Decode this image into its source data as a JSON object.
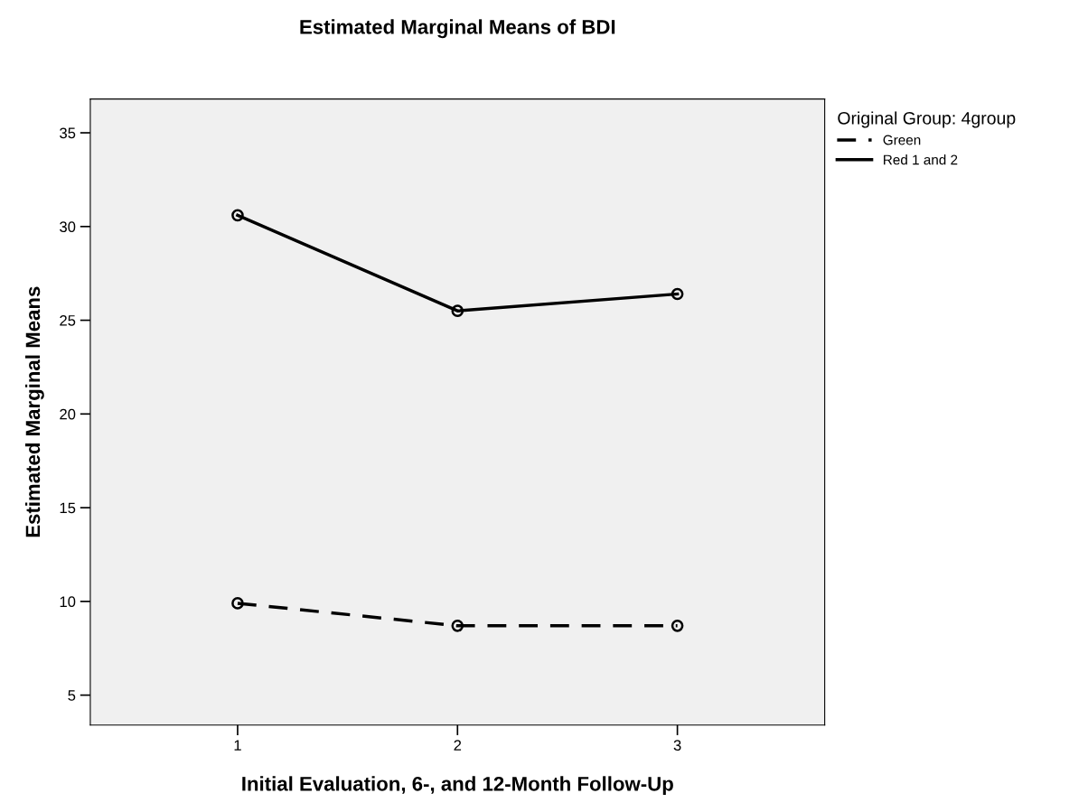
{
  "chart_data": {
    "type": "line",
    "title": "Estimated Marginal Means of BDI",
    "xlabel": "Initial Evaluation, 6-, and 12-Month Follow-Up",
    "ylabel": "Estimated Marginal Means",
    "legend_title": "Original Group: 4group",
    "legend": "top right",
    "x": [
      1,
      2,
      3
    ],
    "xlim": [
      0.33,
      3.67
    ],
    "xticks": [
      1,
      2,
      3
    ],
    "ylim": [
      3.4,
      36.8
    ],
    "yticks": [
      5,
      10,
      15,
      20,
      25,
      30,
      35
    ],
    "marker": "circle",
    "grid": false,
    "series": [
      {
        "name": "Green",
        "color": "#000000",
        "line_style": "dashed",
        "values": [
          9.9,
          8.7,
          8.7
        ]
      },
      {
        "name": "Red 1 and 2",
        "color": "#000000",
        "line_style": "solid",
        "values": [
          30.6,
          25.5,
          26.4
        ]
      }
    ]
  }
}
